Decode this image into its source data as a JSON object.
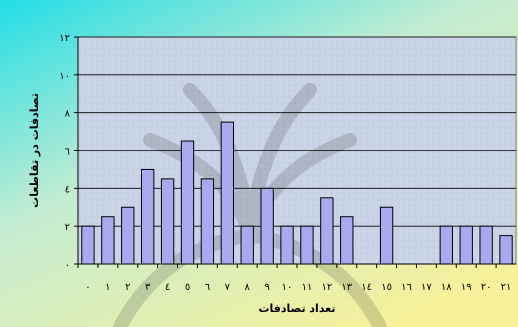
{
  "chart_data": {
    "type": "bar",
    "title": "",
    "xlabel": "تعداد تصادفات",
    "ylabel": "تصادفات در تقاطعات",
    "categories": [
      "٠",
      "١",
      "٢",
      "٣",
      "٤",
      "٥",
      "٦",
      "٧",
      "٨",
      "٩",
      "١٠",
      "١١",
      "١٢",
      "١٣",
      "١٤",
      "١٥",
      "١٦",
      "١٧",
      "١٨",
      "١٩",
      "٢٠",
      "٢١"
    ],
    "values": [
      2,
      2.5,
      3,
      5,
      4.5,
      6.5,
      4.5,
      7.5,
      2,
      4,
      2,
      2,
      3.5,
      2.5,
      0,
      3,
      0,
      0,
      2,
      2,
      2,
      1.5
    ],
    "y_ticks": [
      0,
      2,
      4,
      6,
      8,
      10,
      12
    ],
    "y_tick_labels": [
      "٠",
      "٢",
      "٤",
      "٦",
      "٨",
      "١٠",
      "١٢"
    ],
    "ylim": [
      0,
      12
    ],
    "grid": true,
    "legend": "none",
    "colors": {
      "bar_fill": "#a9a9f0",
      "bar_stroke": "#000000",
      "plot_bg": "#c9d3e6",
      "gridline": "#000000",
      "bg_cyan": "#22dde6",
      "bg_yellow": "#f6f19a"
    }
  }
}
